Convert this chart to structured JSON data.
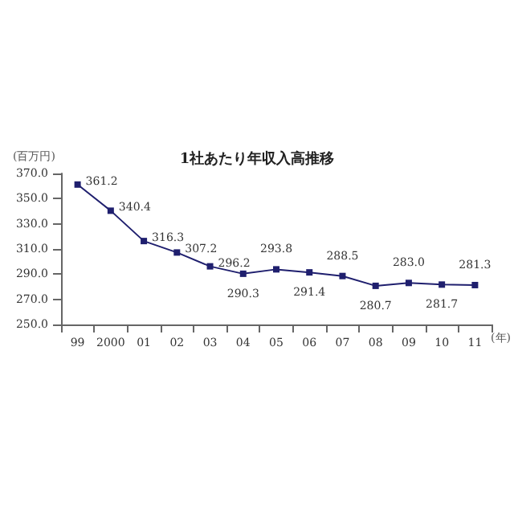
{
  "chart_data": {
    "type": "line",
    "title": "1社あたり年収入高推移",
    "ylabel": "(百万円)",
    "xlabel": "(年)",
    "categories": [
      "99",
      "2000",
      "01",
      "02",
      "03",
      "04",
      "05",
      "06",
      "07",
      "08",
      "09",
      "10",
      "11"
    ],
    "series": [
      {
        "color": "#1f1f6e",
        "values": [
          361.2,
          340.4,
          316.3,
          307.2,
          296.2,
          290.3,
          293.8,
          291.4,
          288.5,
          280.7,
          283.0,
          281.7,
          281.3
        ],
        "value_labels": [
          "361.2",
          "340.4",
          "316.3",
          "307.2",
          "296.2",
          "290.3",
          "293.8",
          "291.4",
          "288.5",
          "280.7",
          "283.0",
          "281.7",
          "281.3"
        ]
      }
    ],
    "ylim": [
      250,
      370
    ],
    "yticks": [
      {
        "value": 250,
        "label": "250.0"
      },
      {
        "value": 270,
        "label": "270.0"
      },
      {
        "value": 290,
        "label": "290.0"
      },
      {
        "value": 310,
        "label": "310.0"
      },
      {
        "value": 330,
        "label": "330.0"
      },
      {
        "value": 350,
        "label": "350.0"
      },
      {
        "value": 370,
        "label": "370.0"
      }
    ],
    "grid": false,
    "marker": "square",
    "line_style": "solid"
  }
}
